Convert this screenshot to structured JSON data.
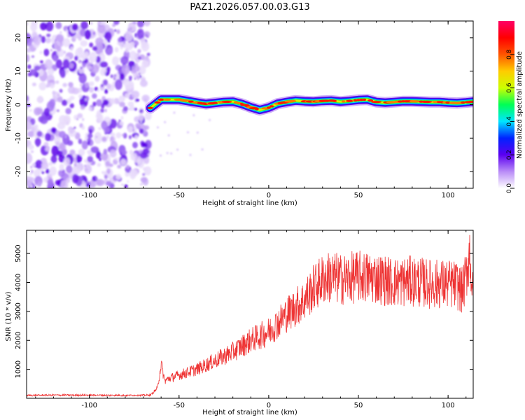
{
  "figure": {
    "title": "PAZ1.2026.057.00.03.G13"
  },
  "chart_data": [
    {
      "type": "heatmap",
      "title": "PAZ1.2026.057.00.03.G13",
      "xlabel": "Height of straight line (km)",
      "ylabel": "Frequency (Hz)",
      "xlim": [
        -135,
        114
      ],
      "ylim": [
        -25,
        25
      ],
      "xticks": [
        -100,
        -50,
        0,
        50,
        100
      ],
      "yticks": [
        -20,
        -10,
        0,
        10,
        20
      ],
      "xtick_labels": [
        "-100",
        "-50",
        "0",
        "50",
        "100"
      ],
      "ytick_labels": [
        "-20",
        "-10",
        "0",
        "10",
        "20"
      ],
      "noise_region_x": [
        -135,
        -66
      ],
      "ridge": {
        "x": [
          -66,
          -60,
          -50,
          -40,
          -35,
          -30,
          -25,
          -20,
          -15,
          -10,
          -5,
          0,
          5,
          10,
          15,
          20,
          25,
          30,
          35,
          40,
          45,
          50,
          55,
          60,
          65,
          70,
          75,
          80,
          85,
          90,
          95,
          100,
          105,
          110,
          114
        ],
        "y": [
          -1,
          1.5,
          1.5,
          0.6,
          0.2,
          0.5,
          0.8,
          0.9,
          0.2,
          -0.8,
          -1.6,
          -0.9,
          0.3,
          0.8,
          1.2,
          1,
          0.9,
          1.1,
          1.2,
          0.9,
          1.1,
          1.4,
          1.5,
          0.8,
          0.6,
          0.8,
          1,
          1,
          0.9,
          0.8,
          0.8,
          0.6,
          0.5,
          0.7,
          0.9
        ]
      },
      "colorbar": {
        "label": "Normalized spectral amplitude",
        "range": [
          0,
          1
        ],
        "ticks": [
          0,
          0.2,
          0.4,
          0.6,
          0.8
        ],
        "tick_labels": [
          "0.0",
          "0.2",
          "0.4",
          "0.6",
          "0.8"
        ],
        "colors": [
          "#ffffff",
          "#b98cf7",
          "#5b00f0",
          "#0022ff",
          "#00e5ff",
          "#00ff55",
          "#ccff00",
          "#ffcc00",
          "#ff5500",
          "#ff0000",
          "#ff0066"
        ]
      }
    },
    {
      "type": "line",
      "xlabel": "Height of straight line (km)",
      "ylabel": "SNR (10 * v/v)",
      "xlim": [
        -135,
        114
      ],
      "ylim": [
        0,
        5800
      ],
      "xticks": [
        -100,
        -50,
        0,
        50,
        100
      ],
      "yticks": [
        1000,
        2000,
        3000,
        4000,
        5000
      ],
      "xtick_labels": [
        "-100",
        "-50",
        "0",
        "50",
        "100"
      ],
      "ytick_labels": [
        "1000",
        "2000",
        "3000",
        "4000",
        "5000"
      ],
      "series": [
        {
          "name": "SNR",
          "color": "#ee3333",
          "x": [
            -135,
            -120,
            -100,
            -80,
            -66,
            -62,
            -60,
            -58,
            -55,
            -50,
            -40,
            -30,
            -20,
            -10,
            0,
            10,
            20,
            25,
            30,
            35,
            40,
            50,
            60,
            70,
            80,
            90,
            100,
            105,
            108,
            110,
            112,
            114
          ],
          "y": [
            100,
            110,
            110,
            100,
            110,
            350,
            1200,
            600,
            700,
            800,
            1000,
            1300,
            1600,
            2000,
            2300,
            2900,
            3400,
            3800,
            4100,
            4200,
            4100,
            4200,
            4150,
            4000,
            4050,
            3950,
            3950,
            3900,
            3700,
            4200,
            5100,
            3300
          ]
        }
      ]
    }
  ]
}
